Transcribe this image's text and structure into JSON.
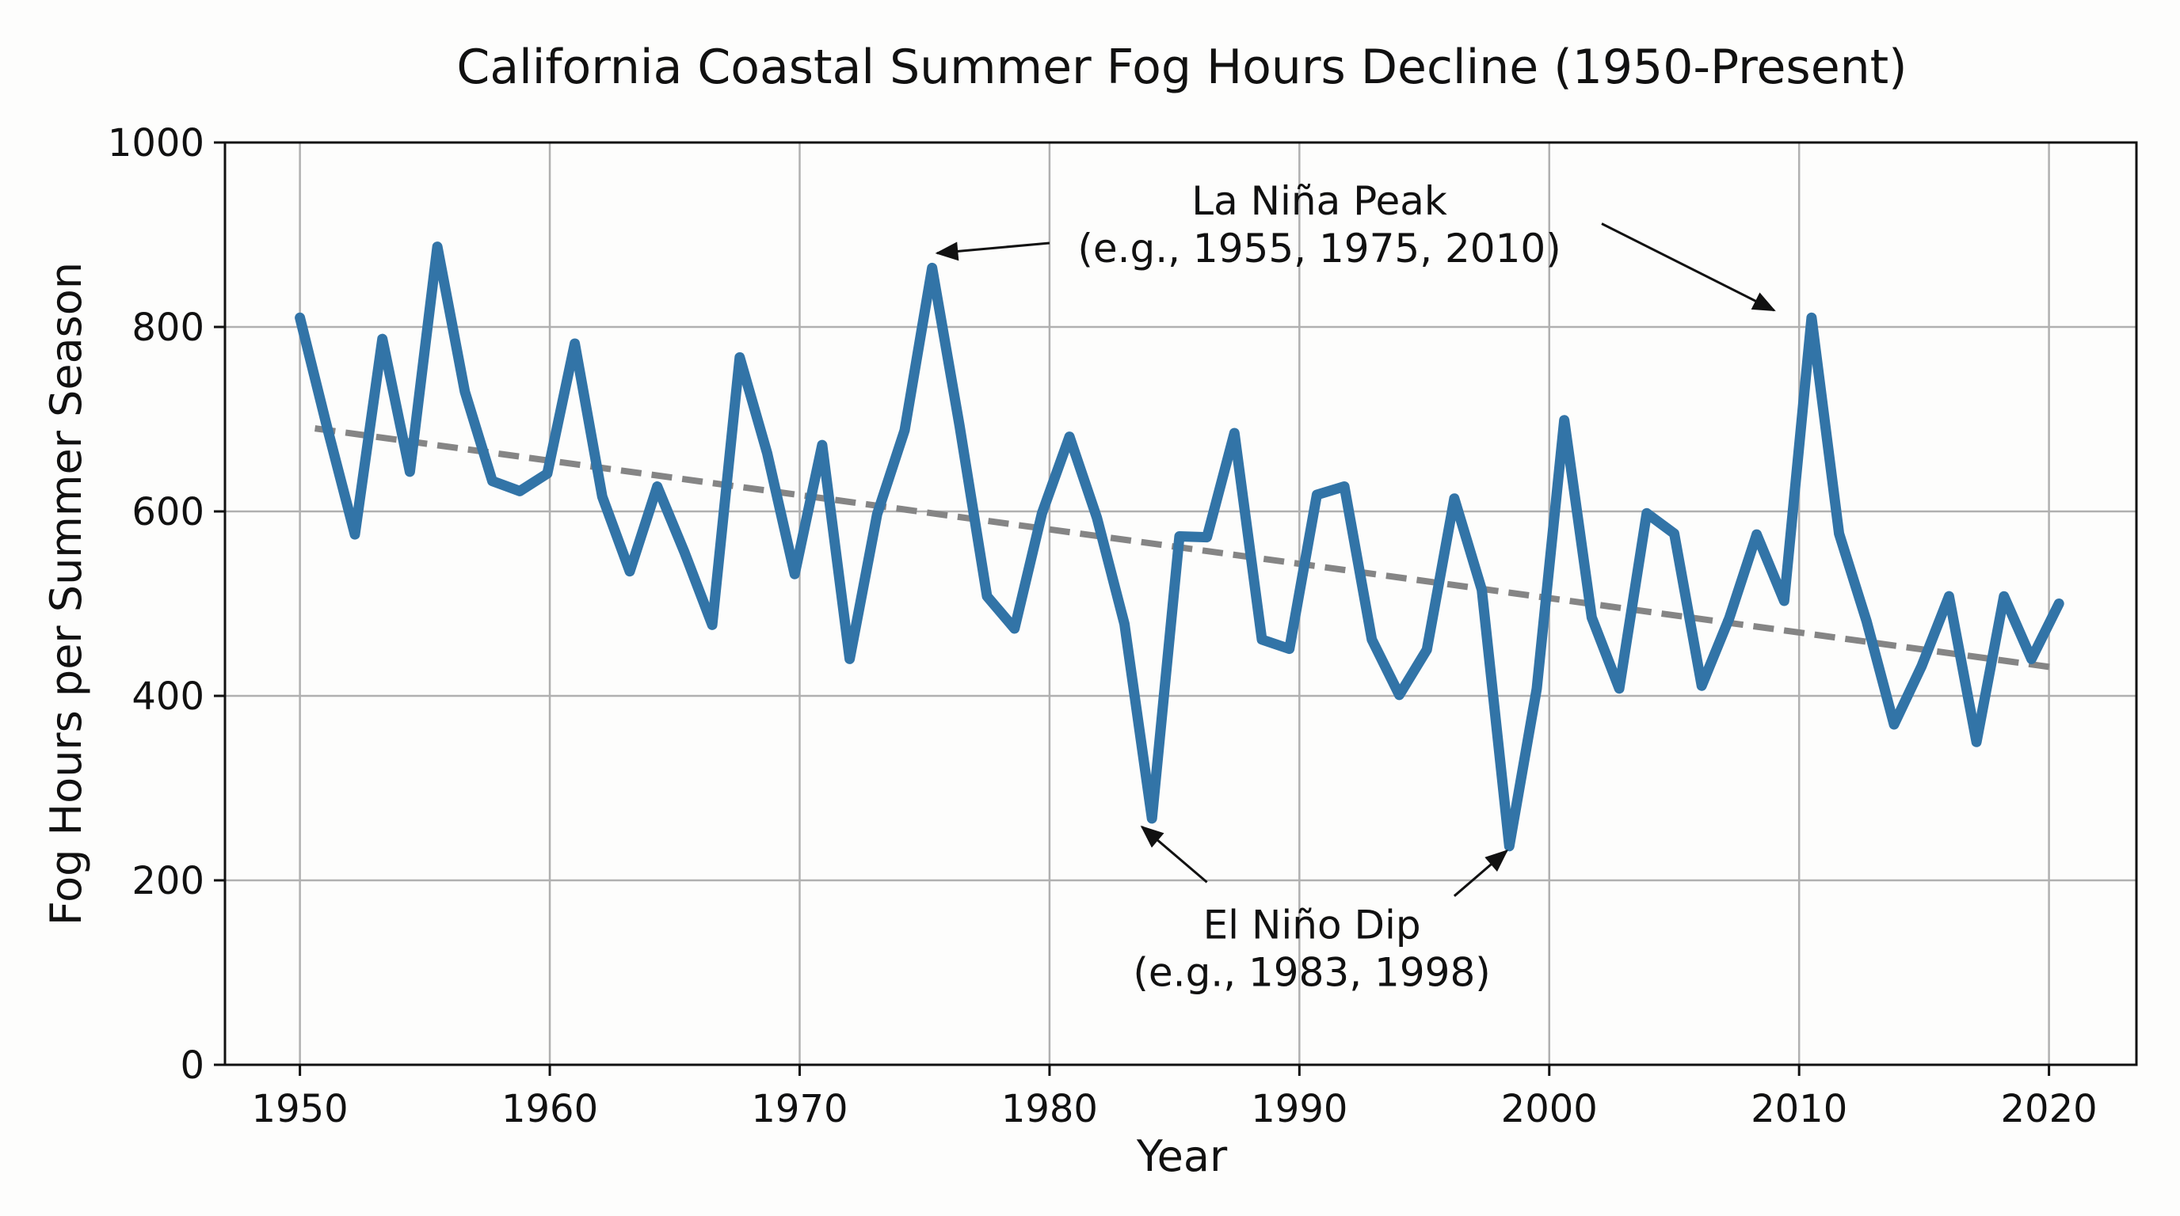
{
  "chart_data": {
    "type": "line",
    "title": "California Coastal Summer Fog Hours Decline (1950-Present)",
    "xlabel": "Year",
    "ylabel": "Fog Hours per Summer Season",
    "xlim": [
      1947,
      2023.5
    ],
    "ylim": [
      0,
      1000
    ],
    "xticks": [
      1950,
      1960,
      1970,
      1980,
      1990,
      2000,
      2010,
      2020
    ],
    "yticks": [
      0,
      200,
      400,
      600,
      800,
      1000
    ],
    "grid": true,
    "series": [
      {
        "color": "#3274a7",
        "x": [
          1950,
          1951.1,
          1952.2,
          1953.3,
          1954.4,
          1955.5,
          1956.6,
          1957.7,
          1958.8,
          1959.9,
          1961,
          1962.1,
          1963.2,
          1964.3,
          1965.4,
          1966.5,
          1967.6,
          1968.7,
          1969.8,
          1970.9,
          1972,
          1973.1,
          1974.2,
          1975.3,
          1976.4,
          1977.5,
          1978.6,
          1979.7,
          1980.8,
          1981.9,
          1983,
          1984.1,
          1985.2,
          1986.3,
          1987.4,
          1988.5,
          1989.6,
          1990.7,
          1991.8,
          1992.9,
          1994,
          1995.1,
          1996.2,
          1997.3,
          1998.4,
          1999.5,
          2000.6,
          2001.7,
          2002.8,
          2003.9,
          2005,
          2006.1,
          2007.2,
          2008.3,
          2009.4,
          2010.5,
          2011.6,
          2012.7,
          2013.8,
          2014.9,
          2016,
          2017.1,
          2018.2,
          2019.3,
          2020.4
        ],
        "values": [
          810,
          690,
          575,
          787,
          643,
          887,
          730,
          633,
          622,
          641,
          782,
          616,
          535,
          627,
          555,
          477,
          767,
          663,
          532,
          672,
          440,
          597,
          688,
          864,
          693,
          508,
          473,
          598,
          681,
          593,
          478,
          267,
          573,
          572,
          685,
          461,
          451,
          618,
          627,
          461,
          401,
          450,
          614,
          515,
          237,
          408,
          699,
          485,
          408,
          598,
          576,
          411,
          484,
          575,
          503,
          810,
          576,
          481,
          369,
          432,
          508,
          350,
          508,
          440,
          500
        ]
      }
    ],
    "trend": {
      "color": "#858585",
      "x": [
        1950.6,
        2020.4
      ],
      "values": [
        690,
        430
      ]
    },
    "annotations": [
      {
        "lines": [
          "La Niña Peak",
          "(e.g., 1955, 1975, 2010)"
        ],
        "anchor": [
          1990.8,
          830
        ],
        "line_gap": 52,
        "arrows": [
          {
            "from": [
              1980.0,
              891
            ],
            "to": [
              1975.5,
              880
            ]
          },
          {
            "from": [
              2002.1,
              912
            ],
            "to": [
              2009.0,
              818
            ]
          }
        ]
      },
      {
        "lines": [
          "El Niño Dip",
          "(e.g., 1983, 1998)"
        ],
        "anchor": [
          1990.5,
          45
        ],
        "line_gap": 52,
        "arrows": [
          {
            "from": [
              1986.3,
              198
            ],
            "to": [
              1983.7,
              258
            ]
          },
          {
            "from": [
              1996.2,
              183
            ],
            "to": [
              1998.3,
              232
            ]
          }
        ]
      }
    ]
  }
}
